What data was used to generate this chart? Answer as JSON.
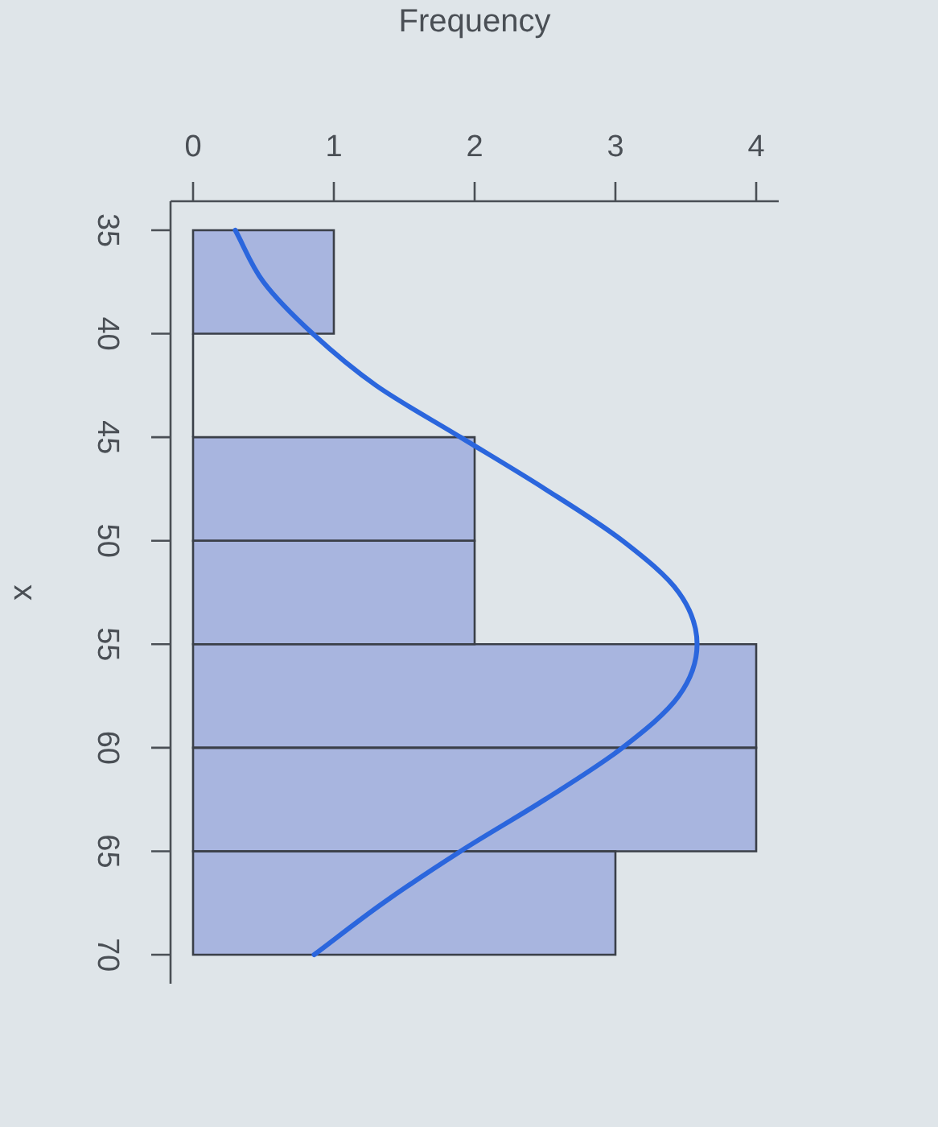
{
  "chart_data": {
    "type": "histogram",
    "orientation": "horizontal",
    "xlabel": "Frequency",
    "ylabel": "x",
    "bins": [
      35,
      40,
      45,
      50,
      55,
      60,
      65,
      70
    ],
    "series": [
      {
        "values": [
          1,
          0,
          2,
          2,
          4,
          4,
          3
        ],
        "color": "#a8b5df"
      },
      {
        "type": "line",
        "x": [
          35,
          37.5,
          40,
          42.5,
          45,
          47.5,
          50,
          52.5,
          55,
          57.5,
          60,
          62.5,
          65,
          67.5,
          70
        ],
        "values": [
          0.3,
          0.5,
          0.85,
          1.3,
          1.9,
          2.5,
          3.05,
          3.45,
          3.58,
          3.45,
          3.05,
          2.5,
          1.9,
          1.35,
          0.86
        ],
        "color": "#2b66dd"
      }
    ],
    "xlim": [
      -0.16,
      4.16
    ],
    "xticks": [
      0,
      1,
      2,
      3,
      4
    ],
    "ylim": [
      71.4,
      33.6
    ],
    "yticks": [
      35,
      40,
      45,
      50,
      55,
      60,
      65,
      70
    ]
  }
}
